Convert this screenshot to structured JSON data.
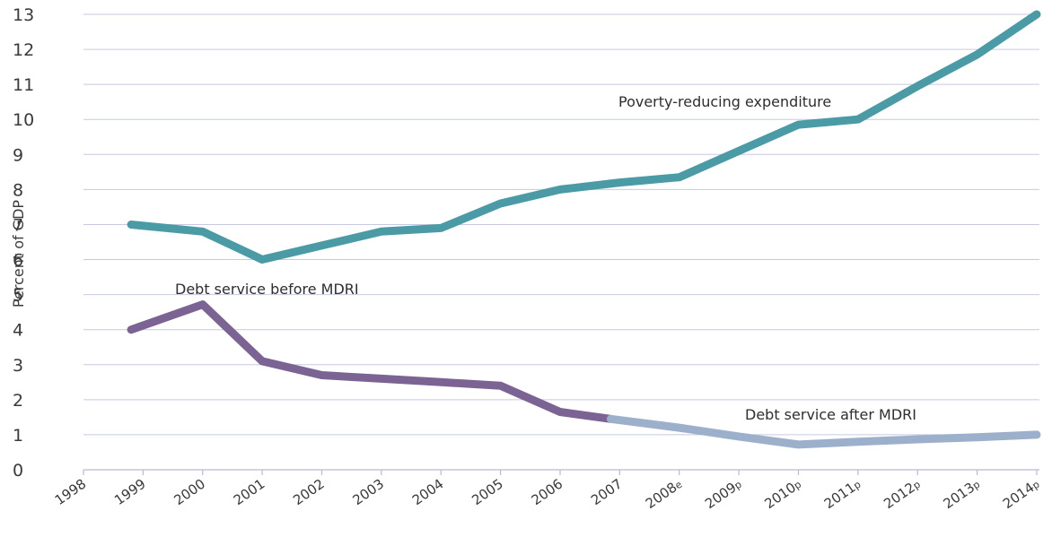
{
  "chart_data": {
    "type": "line",
    "title": "",
    "xlabel": "",
    "ylabel": "Percent of GDP",
    "ylim": [
      0,
      13
    ],
    "yticks": [
      0,
      1,
      2,
      3,
      4,
      5,
      6,
      7,
      8,
      9,
      10,
      11,
      12,
      13
    ],
    "grid": true,
    "x_categories": [
      {
        "year": "1998",
        "suffix": ""
      },
      {
        "year": "1999",
        "suffix": ""
      },
      {
        "year": "2000",
        "suffix": ""
      },
      {
        "year": "2001",
        "suffix": ""
      },
      {
        "year": "2002",
        "suffix": ""
      },
      {
        "year": "2003",
        "suffix": ""
      },
      {
        "year": "2004",
        "suffix": ""
      },
      {
        "year": "2005",
        "suffix": ""
      },
      {
        "year": "2006",
        "suffix": ""
      },
      {
        "year": "2007",
        "suffix": ""
      },
      {
        "year": "2008",
        "suffix": "e"
      },
      {
        "year": "2009",
        "suffix": "p"
      },
      {
        "year": "2010",
        "suffix": "p"
      },
      {
        "year": "2011",
        "suffix": "p"
      },
      {
        "year": "2012",
        "suffix": "p"
      },
      {
        "year": "2013",
        "suffix": "p"
      },
      {
        "year": "2014",
        "suffix": "p"
      }
    ],
    "series": [
      {
        "name": "Poverty-reducing expenditure",
        "color": "#4a9ba5",
        "x": [
          1998.8,
          2000,
          2001,
          2002,
          2003,
          2004,
          2005,
          2006,
          2007,
          2008,
          2009,
          2010,
          2011,
          2012,
          2013,
          2014
        ],
        "y": [
          7.0,
          6.8,
          6.0,
          6.4,
          6.8,
          6.9,
          7.6,
          8.0,
          8.2,
          8.35,
          9.1,
          9.85,
          10.0,
          10.95,
          11.85,
          13.0
        ]
      },
      {
        "name": "Debt service before MDRI",
        "color": "#7b6394",
        "x": [
          1998.8,
          2000,
          2001,
          2002,
          2003,
          2004,
          2005,
          2006,
          2006.85
        ],
        "y": [
          4.0,
          4.72,
          3.1,
          2.7,
          2.6,
          2.5,
          2.4,
          1.65,
          1.45
        ]
      },
      {
        "name": "Debt service after MDRI",
        "color": "#9cb0cc",
        "x": [
          2006.85,
          2008,
          2009,
          2010,
          2011,
          2012,
          2013,
          2014
        ],
        "y": [
          1.45,
          1.2,
          0.95,
          0.72,
          0.8,
          0.87,
          0.93,
          1.0
        ]
      }
    ]
  }
}
